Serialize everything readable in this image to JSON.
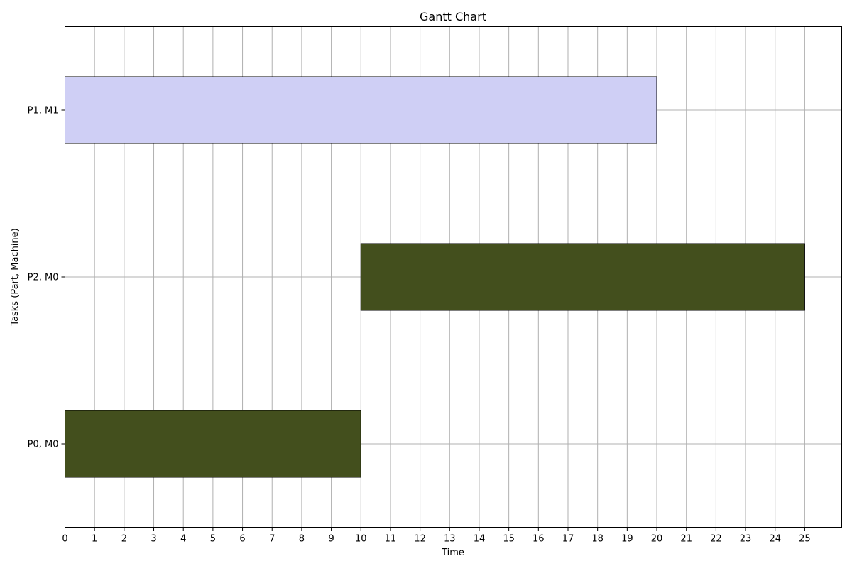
{
  "chart_data": {
    "type": "gantt",
    "title": "Gantt Chart",
    "xlabel": "Time",
    "ylabel": "Tasks (Part, Machine)",
    "xlim": [
      0,
      26.25
    ],
    "x_ticks": [
      0,
      1,
      2,
      3,
      4,
      5,
      6,
      7,
      8,
      9,
      10,
      11,
      12,
      13,
      14,
      15,
      16,
      17,
      18,
      19,
      20,
      21,
      22,
      23,
      24,
      25
    ],
    "categories": [
      "P0, M0",
      "P2, M0",
      "P1, M1"
    ],
    "grid": true,
    "tasks": [
      {
        "label": "P0, M0",
        "start": 0,
        "end": 10,
        "color": "#434f1d"
      },
      {
        "label": "P2, M0",
        "start": 10,
        "end": 25,
        "color": "#434f1d"
      },
      {
        "label": "P1, M1",
        "start": 0,
        "end": 20,
        "color": "#cfcff5"
      }
    ]
  }
}
